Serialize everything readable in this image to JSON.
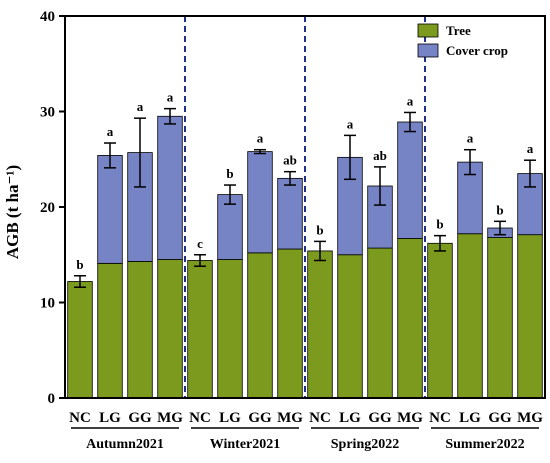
{
  "chart_data": {
    "type": "bar",
    "stacked": true,
    "ylabel": "AGB (t ha⁻¹)",
    "ylim": [
      0,
      40
    ],
    "yticks": [
      0,
      10,
      20,
      30,
      40
    ],
    "grid": false,
    "legend_position": "top-right",
    "colors": {
      "tree": "#7b9a1e",
      "cover": "#7683c5"
    },
    "categories": [
      "NC",
      "LG",
      "GG",
      "MG",
      "NC",
      "LG",
      "GG",
      "MG",
      "NC",
      "LG",
      "GG",
      "MG",
      "NC",
      "LG",
      "GG",
      "MG"
    ],
    "groups": [
      {
        "label": "Autumn2021",
        "start": 0,
        "count": 4
      },
      {
        "label": "Winter2021",
        "start": 4,
        "count": 4
      },
      {
        "label": "Spring2022",
        "start": 8,
        "count": 4
      },
      {
        "label": "Summer2022",
        "start": 12,
        "count": 4
      }
    ],
    "series": [
      {
        "name": "Tree",
        "values": [
          12.2,
          14.1,
          14.3,
          14.5,
          14.4,
          14.5,
          15.2,
          15.6,
          15.4,
          15.0,
          15.7,
          16.7,
          16.2,
          17.2,
          16.8,
          17.1
        ]
      },
      {
        "name": "Cover crop",
        "values": [
          0,
          11.3,
          11.4,
          15.0,
          0,
          6.8,
          10.6,
          7.4,
          0,
          10.2,
          6.5,
          12.2,
          0,
          7.5,
          1.0,
          6.4
        ]
      }
    ],
    "totals": [
      12.2,
      25.4,
      25.7,
      29.5,
      14.4,
      21.3,
      25.8,
      23.0,
      15.4,
      25.2,
      22.2,
      28.9,
      16.2,
      24.7,
      17.8,
      23.5
    ],
    "errors": [
      0.6,
      1.3,
      3.6,
      0.8,
      0.6,
      1.0,
      0.2,
      0.7,
      1.0,
      2.3,
      2.0,
      1.0,
      0.8,
      1.3,
      0.7,
      1.4
    ],
    "letters": [
      "b",
      "a",
      "a",
      "a",
      "c",
      "b",
      "a",
      "ab",
      "b",
      "a",
      "ab",
      "a",
      "b",
      "a",
      "b",
      "a"
    ]
  }
}
